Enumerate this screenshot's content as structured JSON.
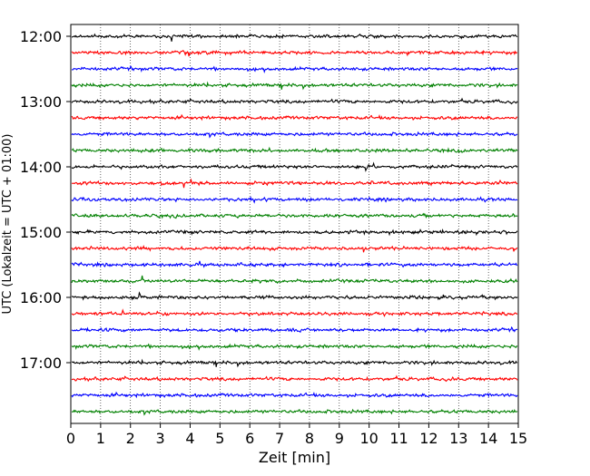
{
  "chart_data": {
    "type": "line",
    "title": "",
    "xlabel": "Zeit  [min]",
    "ylabel": "UTC (Lokalzeit = UTC + 01:00)",
    "xlim": [
      0,
      15
    ],
    "x_ticks": [
      "0",
      "1",
      "2",
      "3",
      "4",
      "5",
      "6",
      "7",
      "8",
      "9",
      "10",
      "11",
      "12",
      "13",
      "14",
      "15"
    ],
    "y_tick_labels": [
      "12:00",
      "13:00",
      "14:00",
      "15:00",
      "16:00",
      "17:00"
    ],
    "grid": "vertical dotted",
    "trace_colors": [
      "#000000",
      "#ff0000",
      "#0000ff",
      "#008000"
    ],
    "trace_start_times": [
      "12:00",
      "12:15",
      "12:30",
      "12:45",
      "13:00",
      "13:15",
      "13:30",
      "13:45",
      "14:00",
      "14:15",
      "14:30",
      "14:45",
      "15:00",
      "15:15",
      "15:30",
      "15:45",
      "16:00",
      "16:15",
      "16:30",
      "16:45",
      "17:00",
      "17:15",
      "17:30",
      "17:45"
    ],
    "trace_minutes_per_line": 15
  }
}
